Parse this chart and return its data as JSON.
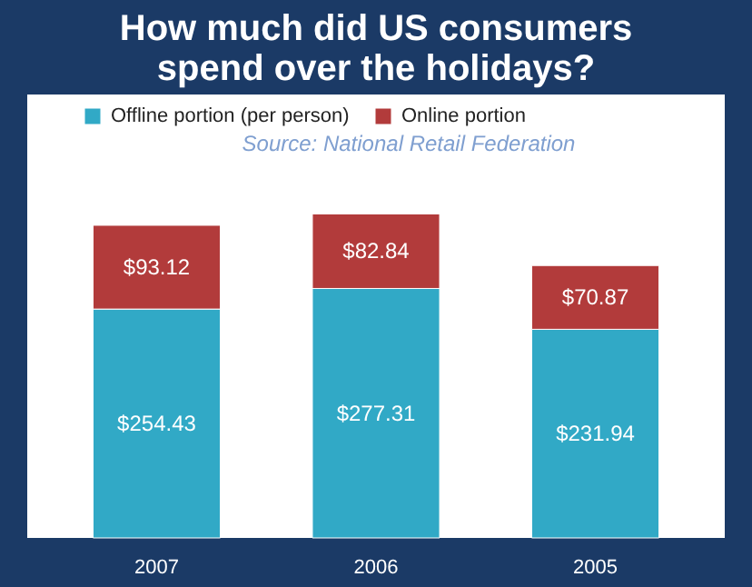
{
  "chart_data": {
    "type": "bar",
    "title": "How much did US consumers spend over the holidays?",
    "categories": [
      "2007",
      "2006",
      "2005"
    ],
    "stacked": true,
    "data_labels": true,
    "legend": "top",
    "annotations": [
      "Source: National Retail Federation"
    ],
    "series": [
      {
        "name": "Offline portion (per person)",
        "color": "#31a9c6",
        "values": [
          254.43,
          277.31,
          231.94
        ],
        "value_labels": [
          "$254.43",
          "$277.31",
          "$231.94"
        ]
      },
      {
        "name": "Online portion",
        "color": "#b23b3b",
        "values": [
          93.12,
          82.84,
          70.87
        ],
        "value_labels": [
          "$93.12",
          "$82.84",
          "$70.87"
        ]
      }
    ]
  }
}
